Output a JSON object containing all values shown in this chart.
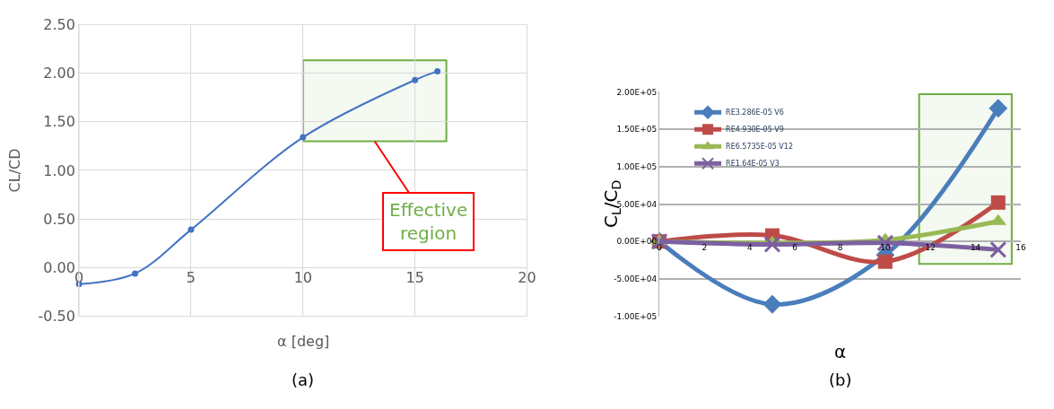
{
  "chart_data": [
    {
      "type": "line",
      "xlabel": "α [deg]",
      "ylabel": "CL/CD",
      "x": [
        0,
        2.5,
        5,
        10,
        15,
        16
      ],
      "series": [
        {
          "color": "#4472c4",
          "values": [
            -0.17,
            -0.06,
            0.39,
            1.34,
            1.93,
            2.02
          ]
        }
      ],
      "xlim": [
        0,
        20
      ],
      "xticks": [
        0,
        5,
        10,
        15,
        20
      ],
      "ylim": [
        -0.5,
        2.5
      ],
      "yticks": [
        {
          "value": -0.5,
          "label": "-0.50"
        },
        {
          "value": 0,
          "label": "0.00"
        },
        {
          "value": 0.5,
          "label": "0.50"
        },
        {
          "value": 1,
          "label": "1.00"
        },
        {
          "value": 1.5,
          "label": "1.50"
        },
        {
          "value": 2,
          "label": "2.00"
        },
        {
          "value": 2.5,
          "label": "2.50"
        }
      ],
      "grid": true,
      "legend": false,
      "marker": "circle",
      "bands": [
        {
          "axis": "x",
          "from": 10,
          "to": 16.4,
          "color": "#70ad47"
        }
      ],
      "annotations": [
        {
          "text": "Effective region",
          "x": 13.2,
          "y": 1.3
        },
        "(a)"
      ]
    },
    {
      "type": "line",
      "xlabel": "α",
      "ylabel": "C$_{L}$/C$_{D}$",
      "x": [
        0,
        5,
        10,
        15
      ],
      "series": [
        {
          "name": "RE3.286E-05 V6",
          "color": "#4a7ebb",
          "marker": "diamond",
          "values": [
            0,
            -84000,
            -18000,
            178000
          ]
        },
        {
          "name": "RE4.930E-05 V9",
          "color": "#be4b48",
          "marker": "square",
          "values": [
            0,
            8000,
            -27000,
            52000
          ]
        },
        {
          "name": "RE6.5735E-05 V12",
          "color": "#98b954",
          "marker": "triangle",
          "values": [
            0,
            -2000,
            2000,
            27000
          ]
        },
        {
          "name": "RE1.64E-05 V3",
          "color": "#7d60a0",
          "marker": "cross",
          "values": [
            0,
            -4000,
            -2000,
            -11000
          ]
        }
      ],
      "xlim": [
        0,
        16
      ],
      "xticks": [
        0,
        2,
        4,
        6,
        8,
        10,
        12,
        14,
        16
      ],
      "ylim": [
        -100000,
        200000
      ],
      "yticks": [
        {
          "value": -100000,
          "label": "-1.00E+05"
        },
        {
          "value": -50000,
          "label": "-5.00E+04"
        },
        {
          "value": 0,
          "label": "0.00E+00"
        },
        {
          "value": 50000,
          "label": "5.00E+04"
        },
        {
          "value": 100000,
          "label": "1.00E+05"
        },
        {
          "value": 150000,
          "label": "1.50E+05"
        },
        {
          "value": 200000,
          "label": "2.00E+05"
        }
      ],
      "grid": "y",
      "legend": "top left",
      "bands": [
        {
          "axis": "x",
          "from": 11.5,
          "to": 15.6,
          "color": "#70ad47"
        }
      ],
      "annotations": [
        "(b)"
      ]
    }
  ]
}
